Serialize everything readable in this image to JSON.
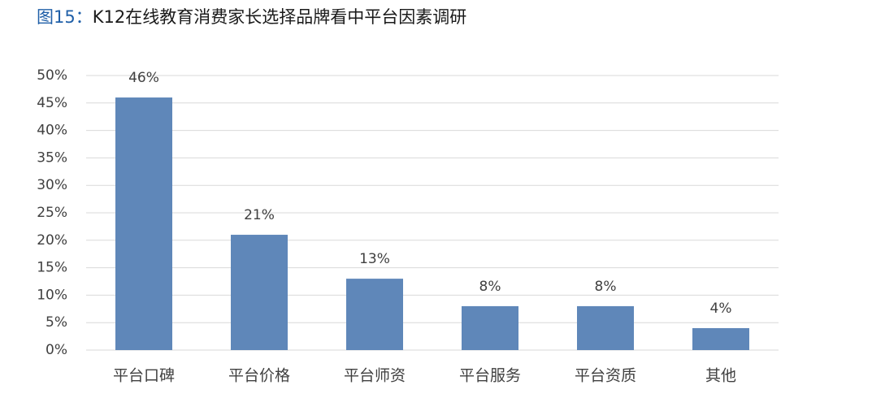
{
  "chart_data": {
    "type": "bar",
    "figure_label": "图15：",
    "title": "K12在线教育消费家长选择品牌看中平台因素调研",
    "categories": [
      "平台口碑",
      "平台价格",
      "平台师资",
      "平台服务",
      "平台资质",
      "其他"
    ],
    "values": [
      46,
      21,
      13,
      8,
      8,
      4
    ],
    "value_labels": [
      "46%",
      "21%",
      "13%",
      "8%",
      "8%",
      "4%"
    ],
    "color": "#5f87b9",
    "ylim": [
      0,
      50
    ],
    "yticks": [
      {
        "value": 0,
        "label": "0%"
      },
      {
        "value": 5,
        "label": "5%"
      },
      {
        "value": 10,
        "label": "10%"
      },
      {
        "value": 15,
        "label": "15%"
      },
      {
        "value": 20,
        "label": "20%"
      },
      {
        "value": 25,
        "label": "25%"
      },
      {
        "value": 30,
        "label": "30%"
      },
      {
        "value": 35,
        "label": "35%"
      },
      {
        "value": 40,
        "label": "40%"
      },
      {
        "value": 45,
        "label": "45%"
      },
      {
        "value": 50,
        "label": "50%"
      }
    ],
    "grid": true
  }
}
